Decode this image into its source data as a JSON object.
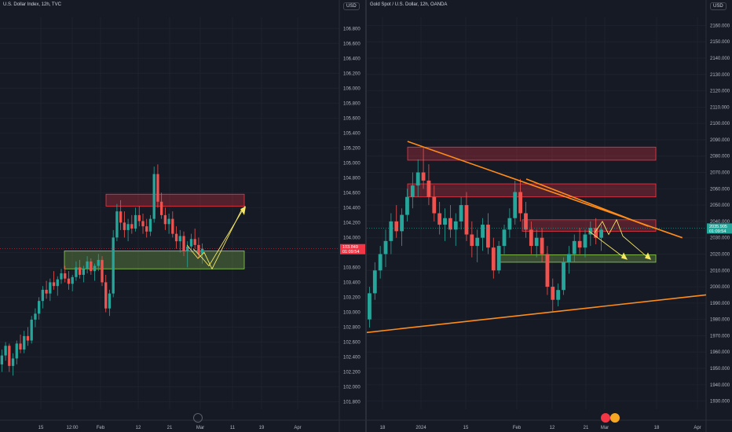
{
  "chart_data": [
    {
      "type": "candlestick",
      "title": "U.S. Dollar Index, 12h, TVC",
      "currency": "USD",
      "y_ticks": [
        "106.800",
        "106.600",
        "106.400",
        "106.200",
        "106.000",
        "105.800",
        "105.600",
        "105.400",
        "105.200",
        "105.000",
        "104.800",
        "104.600",
        "104.400",
        "104.200",
        "104.000",
        "103.800",
        "103.600",
        "103.400",
        "103.200",
        "103.000",
        "102.800",
        "102.600",
        "102.400",
        "102.200",
        "102.000",
        "101.800"
      ],
      "ylim": [
        101.7,
        106.95
      ],
      "x_ticks": [
        "15",
        "12:00",
        "Feb",
        "12",
        "21",
        "Mar",
        "11",
        "19",
        "Apr"
      ],
      "current_price": "103.849",
      "countdown": "01:09:54",
      "zones": [
        {
          "kind": "supply",
          "color": "#f23645",
          "y_top": 104.58,
          "y_bottom": 104.42
        },
        {
          "kind": "demand",
          "color": "#8fd14f",
          "y_top": 103.82,
          "y_bottom": 103.58
        }
      ],
      "candles": [
        [
          102.3,
          102.5,
          102.2,
          102.42
        ],
        [
          102.42,
          102.6,
          102.35,
          102.55
        ],
        [
          102.55,
          102.58,
          102.2,
          102.28
        ],
        [
          102.28,
          102.45,
          102.15,
          102.38
        ],
        [
          102.38,
          102.62,
          102.3,
          102.58
        ],
        [
          102.58,
          102.7,
          102.45,
          102.5
        ],
        [
          102.5,
          102.75,
          102.45,
          102.68
        ],
        [
          102.68,
          102.8,
          102.55,
          102.62
        ],
        [
          102.62,
          102.95,
          102.58,
          102.9
        ],
        [
          102.9,
          103.05,
          102.8,
          102.98
        ],
        [
          102.98,
          103.2,
          102.9,
          103.15
        ],
        [
          103.15,
          103.35,
          103.05,
          103.3
        ],
        [
          103.3,
          103.42,
          103.18,
          103.25
        ],
        [
          103.25,
          103.45,
          103.15,
          103.4
        ],
        [
          103.4,
          103.55,
          103.3,
          103.35
        ],
        [
          103.35,
          103.48,
          103.22,
          103.44
        ],
        [
          103.44,
          103.58,
          103.38,
          103.52
        ],
        [
          103.52,
          103.62,
          103.4,
          103.45
        ],
        [
          103.45,
          103.55,
          103.3,
          103.38
        ],
        [
          103.38,
          103.5,
          103.28,
          103.47
        ],
        [
          103.47,
          103.68,
          103.42,
          103.6
        ],
        [
          103.6,
          103.7,
          103.45,
          103.5
        ],
        [
          103.5,
          103.62,
          103.4,
          103.58
        ],
        [
          103.58,
          103.75,
          103.52,
          103.68
        ],
        [
          103.68,
          103.72,
          103.5,
          103.55
        ],
        [
          103.55,
          103.65,
          103.42,
          103.62
        ],
        [
          103.62,
          103.78,
          103.55,
          103.7
        ],
        [
          103.7,
          103.75,
          103.35,
          103.4
        ],
        [
          103.4,
          103.5,
          103.0,
          103.05
        ],
        [
          103.05,
          103.3,
          102.95,
          103.25
        ],
        [
          103.25,
          104.1,
          103.2,
          104.0
        ],
        [
          104.0,
          104.45,
          103.95,
          104.35
        ],
        [
          104.35,
          104.5,
          104.1,
          104.2
        ],
        [
          104.2,
          104.35,
          104.0,
          104.1
        ],
        [
          104.1,
          104.25,
          103.95,
          104.18
        ],
        [
          104.18,
          104.3,
          104.05,
          104.12
        ],
        [
          104.12,
          104.4,
          104.08,
          104.3
        ],
        [
          104.3,
          104.42,
          104.15,
          104.22
        ],
        [
          104.22,
          104.32,
          104.05,
          104.15
        ],
        [
          104.15,
          104.25,
          104.0,
          104.08
        ],
        [
          104.08,
          104.3,
          104.02,
          104.25
        ],
        [
          104.25,
          104.95,
          104.2,
          104.85
        ],
        [
          104.85,
          104.98,
          104.4,
          104.48
        ],
        [
          104.48,
          104.6,
          104.25,
          104.3
        ],
        [
          104.3,
          104.4,
          104.1,
          104.18
        ],
        [
          104.18,
          104.32,
          104.05,
          104.25
        ],
        [
          104.25,
          104.35,
          104.0,
          104.05
        ],
        [
          104.05,
          104.15,
          103.85,
          103.95
        ],
        [
          103.95,
          104.1,
          103.8,
          104.02
        ],
        [
          104.02,
          104.08,
          103.75,
          103.82
        ],
        [
          103.82,
          103.95,
          103.6,
          103.88
        ],
        [
          103.88,
          104.05,
          103.8,
          103.98
        ],
        [
          103.98,
          104.12,
          103.85,
          103.9
        ],
        [
          103.9,
          104.0,
          103.72,
          103.78
        ],
        [
          103.78,
          103.92,
          103.65,
          103.85
        ]
      ],
      "projection": [
        [
          104.5,
          103.7
        ],
        [
          103.85,
          103.55
        ],
        [
          104.5
        ]
      ]
    },
    {
      "type": "candlestick",
      "title": "Gold Spot / U.S. Dollar, 12h, OANDA",
      "currency": "USD",
      "y_ticks": [
        "2160.000",
        "2150.000",
        "2140.000",
        "2130.000",
        "2120.000",
        "2110.000",
        "2100.000",
        "2090.000",
        "2080.000",
        "2070.000",
        "2060.000",
        "2050.000",
        "2040.000",
        "2030.000",
        "2020.000",
        "2010.000",
        "2000.000",
        "1990.000",
        "1980.000",
        "1970.000",
        "1960.000",
        "1950.000",
        "1940.000",
        "1930.000"
      ],
      "ylim": [
        1925,
        2165
      ],
      "x_ticks": [
        "18",
        "2024",
        "15",
        "Feb",
        "12",
        "21",
        "Mar",
        "18",
        "Apr"
      ],
      "current_price": "2035.905",
      "countdown": "01:09:54",
      "zones": [
        {
          "kind": "supply",
          "color": "#f23645",
          "y_top": 2085.5,
          "y_bottom": 2077.5
        },
        {
          "kind": "supply",
          "color": "#f23645",
          "y_top": 2063,
          "y_bottom": 2055
        },
        {
          "kind": "supply",
          "color": "#f23645",
          "y_top": 2041,
          "y_bottom": 2034
        },
        {
          "kind": "demand",
          "color": "#8fd14f",
          "y_top": 2019.5,
          "y_bottom": 2015
        }
      ],
      "candles": [
        [
          1980,
          2000,
          1975,
          1996
        ],
        [
          1996,
          2015,
          1992,
          2010
        ],
        [
          2010,
          2025,
          2005,
          2020
        ],
        [
          2020,
          2035,
          2012,
          2028
        ],
        [
          2028,
          2045,
          2020,
          2040
        ],
        [
          2040,
          2050,
          2030,
          2034
        ],
        [
          2034,
          2048,
          2025,
          2044
        ],
        [
          2044,
          2060,
          2040,
          2055
        ],
        [
          2055,
          2070,
          2048,
          2062
        ],
        [
          2062,
          2078,
          2055,
          2070
        ],
        [
          2070,
          2085,
          2060,
          2065
        ],
        [
          2065,
          2075,
          2050,
          2055
        ],
        [
          2055,
          2062,
          2040,
          2045
        ],
        [
          2045,
          2052,
          2032,
          2038
        ],
        [
          2038,
          2048,
          2028,
          2042
        ],
        [
          2042,
          2050,
          2030,
          2035
        ],
        [
          2035,
          2045,
          2025,
          2040
        ],
        [
          2040,
          2055,
          2035,
          2050
        ],
        [
          2050,
          2058,
          2028,
          2032
        ],
        [
          2032,
          2040,
          2018,
          2025
        ],
        [
          2025,
          2035,
          2015,
          2030
        ],
        [
          2030,
          2042,
          2022,
          2038
        ],
        [
          2038,
          2045,
          2020,
          2024
        ],
        [
          2024,
          2030,
          2005,
          2010
        ],
        [
          2010,
          2028,
          2008,
          2025
        ],
        [
          2025,
          2038,
          2020,
          2035
        ],
        [
          2035,
          2048,
          2030,
          2042
        ],
        [
          2042,
          2065,
          2038,
          2058
        ],
        [
          2058,
          2066,
          2040,
          2045
        ],
        [
          2045,
          2052,
          2030,
          2035
        ],
        [
          2035,
          2040,
          2020,
          2025
        ],
        [
          2025,
          2035,
          2018,
          2030
        ],
        [
          2030,
          2036,
          2015,
          2020
        ],
        [
          2020,
          2025,
          1995,
          2000
        ],
        [
          2000,
          2005,
          1985,
          1992
        ],
        [
          1992,
          2002,
          1988,
          1998
        ],
        [
          1998,
          2018,
          1995,
          2015
        ],
        [
          2015,
          2025,
          2008,
          2020
        ],
        [
          2020,
          2032,
          2015,
          2028
        ],
        [
          2028,
          2036,
          2020,
          2024
        ],
        [
          2024,
          2035,
          2018,
          2032
        ],
        [
          2032,
          2040,
          2025,
          2036
        ],
        [
          2036,
          2042,
          2026,
          2030
        ],
        [
          2030,
          2038,
          2022,
          2035
        ]
      ],
      "trendlines": [
        {
          "color": "#ff8c1a",
          "from": [
            0.12,
            2089
          ],
          "to": [
            0.93,
            2030
          ]
        },
        {
          "color": "#ff8c1a",
          "from": [
            0.47,
            2066
          ],
          "to": [
            0.83,
            2037
          ]
        },
        {
          "color": "#ff8c1a",
          "from": [
            0.0,
            1972
          ],
          "to": [
            1.0,
            1995
          ]
        }
      ]
    }
  ]
}
